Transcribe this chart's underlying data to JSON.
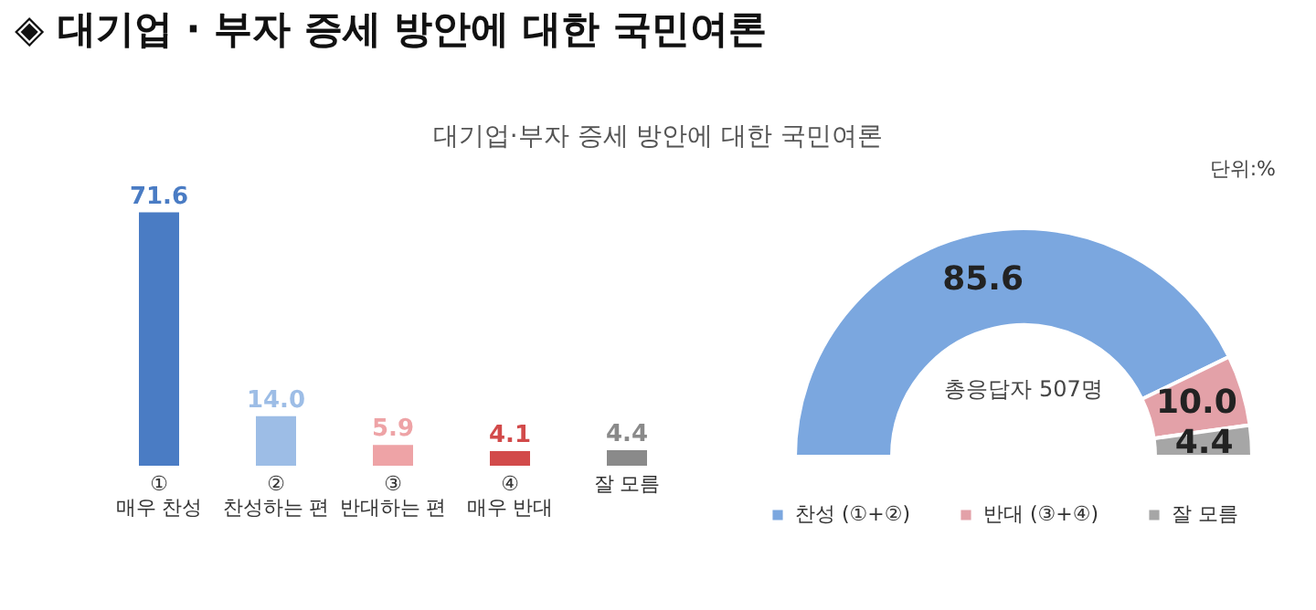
{
  "chart_data": [
    {
      "type": "bar",
      "title": "◈ 대기업 · 부자 증세 방안에 대한 국민여론",
      "subtitle": "대기업·부자 증세 방안에 대한 국민여론",
      "annotations": [
        "단위:%"
      ],
      "categories": [
        "①\n매우 찬성",
        "②\n찬성하는 편",
        "③\n반대하는 편",
        "④\n매우 반대",
        "잘 모름"
      ],
      "values": [
        71.6,
        14.0,
        5.9,
        4.1,
        4.4
      ],
      "colors": [
        "#4a7cc4",
        "#9dbde6",
        "#eea3a6",
        "#d24a4a",
        "#8a8a8a"
      ],
      "value_labels": [
        "71.6",
        "14.0",
        "5.9",
        "4.1",
        "4.4"
      ]
    },
    {
      "type": "donut",
      "annotations": [
        "총응답자 507명"
      ],
      "categories": [
        "찬성 (①+②)",
        "반대 (③+④)",
        "잘 모름"
      ],
      "values": [
        85.6,
        10.0,
        4.4
      ],
      "colors": [
        "#7ba7df",
        "#e3a1a8",
        "#a6a6a6"
      ],
      "value_labels": [
        "85.6",
        "10.0",
        "4.4"
      ],
      "legend": "bottom"
    }
  ]
}
